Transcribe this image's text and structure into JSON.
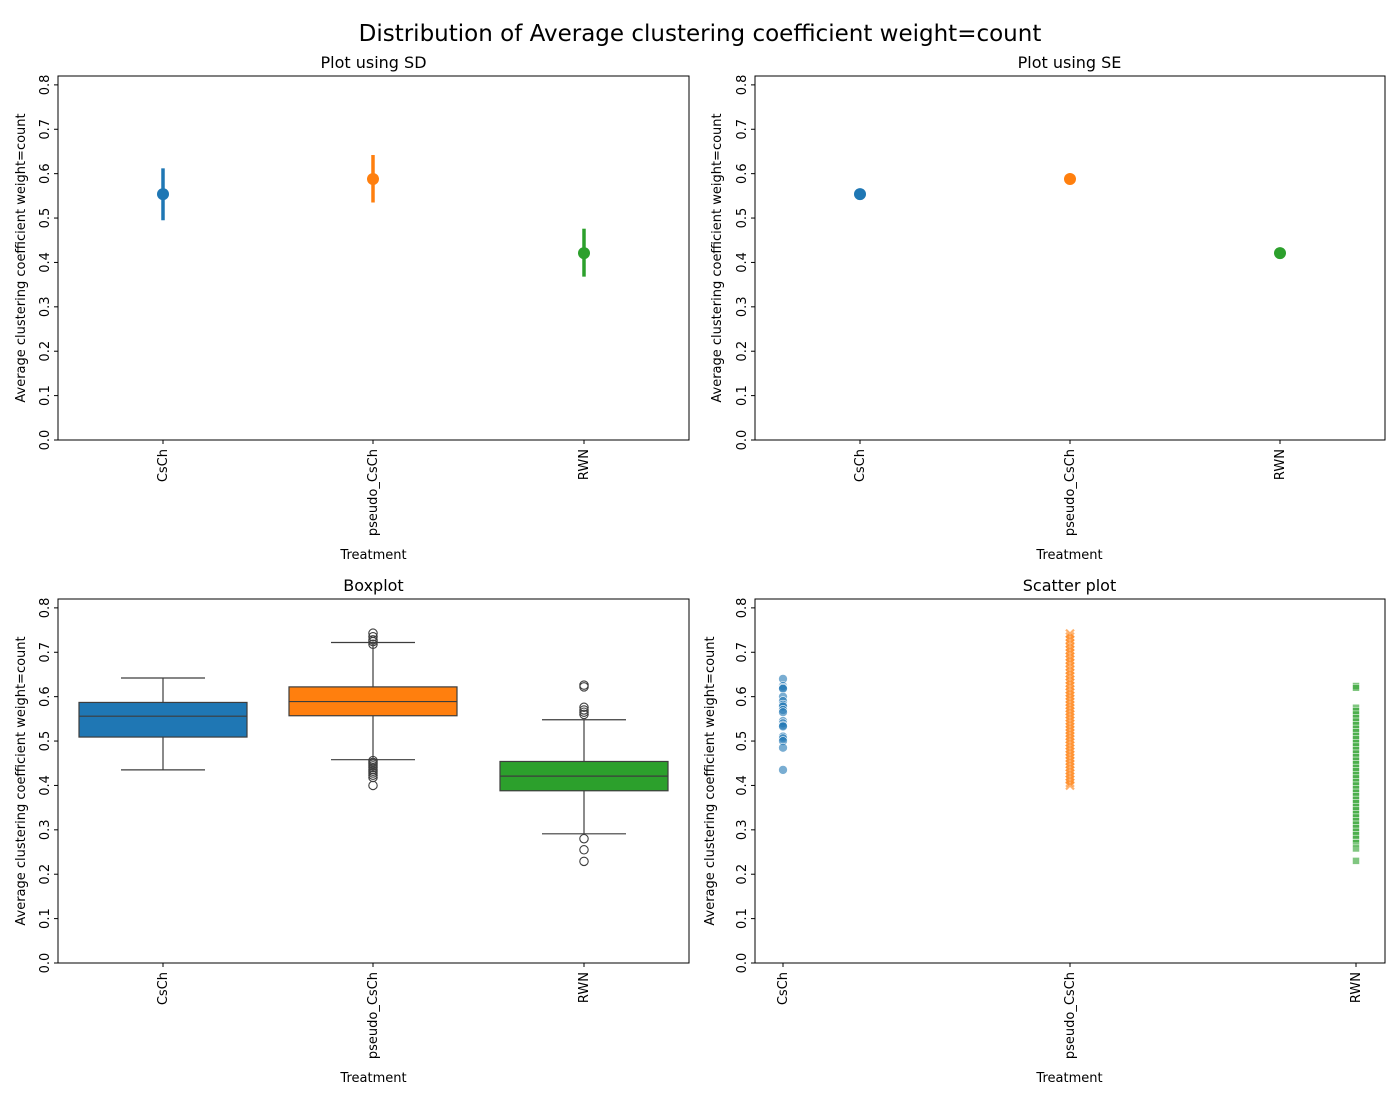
{
  "figure": {
    "title": "Distribution of Average clustering coefficient weight=count"
  },
  "colors": {
    "CsCh": "#1f77b4",
    "pseudo_CsCh": "#ff7f0e",
    "RWN": "#2ca02c"
  },
  "chart_data": [
    {
      "type": "pointplot",
      "title": "Plot using SD",
      "xlabel": "Treatment",
      "ylabel": "Average clustering coefficient weight=count",
      "ylim": [
        0,
        0.82
      ],
      "yticks": [
        "0.0",
        "0.1",
        "0.2",
        "0.3",
        "0.4",
        "0.5",
        "0.6",
        "0.7",
        "0.8"
      ],
      "categories": [
        "CsCh",
        "pseudo_CsCh",
        "RWN"
      ],
      "values": [
        0.554,
        0.588,
        0.421
      ],
      "err_low": [
        0.495,
        0.535,
        0.368
      ],
      "err_high": [
        0.612,
        0.642,
        0.476
      ]
    },
    {
      "type": "pointplot",
      "title": "Plot using SE",
      "xlabel": "Treatment",
      "ylabel": "Average clustering coefficient weight=count",
      "ylim": [
        0,
        0.82
      ],
      "yticks": [
        "0.0",
        "0.1",
        "0.2",
        "0.3",
        "0.4",
        "0.5",
        "0.6",
        "0.7",
        "0.8"
      ],
      "categories": [
        "CsCh",
        "pseudo_CsCh",
        "RWN"
      ],
      "values": [
        0.554,
        0.588,
        0.421
      ],
      "err_low": [
        0.543,
        0.584,
        0.418
      ],
      "err_high": [
        0.565,
        0.592,
        0.424
      ]
    },
    {
      "type": "box",
      "title": "Boxplot",
      "xlabel": "Treatment",
      "ylabel": "Average clustering coefficient weight=count",
      "ylim": [
        0,
        0.82
      ],
      "yticks": [
        "0.0",
        "0.1",
        "0.2",
        "0.3",
        "0.4",
        "0.5",
        "0.6",
        "0.7",
        "0.8"
      ],
      "categories": [
        "CsCh",
        "pseudo_CsCh",
        "RWN"
      ],
      "boxes": [
        {
          "whislo": 0.435,
          "q1": 0.509,
          "med": 0.556,
          "q3": 0.587,
          "whishi": 0.642,
          "fliers": []
        },
        {
          "whislo": 0.458,
          "q1": 0.557,
          "med": 0.589,
          "q3": 0.622,
          "whishi": 0.722,
          "fliers": [
            0.743,
            0.735,
            0.728,
            0.724,
            0.718,
            0.456,
            0.452,
            0.448,
            0.444,
            0.44,
            0.436,
            0.432,
            0.428,
            0.423,
            0.418,
            0.4
          ]
        },
        {
          "whislo": 0.291,
          "q1": 0.388,
          "med": 0.421,
          "q3": 0.454,
          "whishi": 0.548,
          "fliers": [
            0.626,
            0.622,
            0.576,
            0.57,
            0.565,
            0.56,
            0.28,
            0.255,
            0.229
          ]
        }
      ]
    },
    {
      "type": "scatter",
      "title": "Scatter plot",
      "xlabel": "Treatment",
      "ylabel": "Average clustering coefficient weight=count",
      "ylim": [
        0,
        0.82
      ],
      "yticks": [
        "0.0",
        "0.1",
        "0.2",
        "0.3",
        "0.4",
        "0.5",
        "0.6",
        "0.7",
        "0.8"
      ],
      "categories": [
        "CsCh",
        "pseudo_CsCh",
        "RWN"
      ],
      "series": [
        {
          "category": "CsCh",
          "marker": "circle",
          "values": [
            0.64,
            0.624,
            0.62,
            0.618,
            0.6,
            0.59,
            0.582,
            0.578,
            0.57,
            0.565,
            0.545,
            0.54,
            0.535,
            0.533,
            0.51,
            0.506,
            0.5,
            0.485,
            0.435
          ]
        },
        {
          "category": "pseudo_CsCh",
          "marker": "x",
          "values": [
            0.742,
            0.735,
            0.728,
            0.72,
            0.712,
            0.705,
            0.698,
            0.69,
            0.683,
            0.676,
            0.668,
            0.66,
            0.653,
            0.646,
            0.638,
            0.631,
            0.624,
            0.616,
            0.609,
            0.602,
            0.595,
            0.588,
            0.581,
            0.574,
            0.567,
            0.56,
            0.553,
            0.546,
            0.539,
            0.532,
            0.525,
            0.518,
            0.511,
            0.504,
            0.497,
            0.49,
            0.483,
            0.476,
            0.469,
            0.462,
            0.455,
            0.448,
            0.441,
            0.434,
            0.427,
            0.42,
            0.413,
            0.406,
            0.4
          ]
        },
        {
          "category": "RWN",
          "marker": "square",
          "values": [
            0.624,
            0.62,
            0.575,
            0.568,
            0.56,
            0.552,
            0.544,
            0.536,
            0.528,
            0.52,
            0.512,
            0.504,
            0.496,
            0.488,
            0.48,
            0.472,
            0.464,
            0.456,
            0.448,
            0.44,
            0.432,
            0.424,
            0.416,
            0.408,
            0.4,
            0.392,
            0.384,
            0.376,
            0.368,
            0.36,
            0.352,
            0.344,
            0.336,
            0.328,
            0.32,
            0.312,
            0.304,
            0.296,
            0.288,
            0.28,
            0.27,
            0.258,
            0.23
          ]
        }
      ]
    }
  ]
}
